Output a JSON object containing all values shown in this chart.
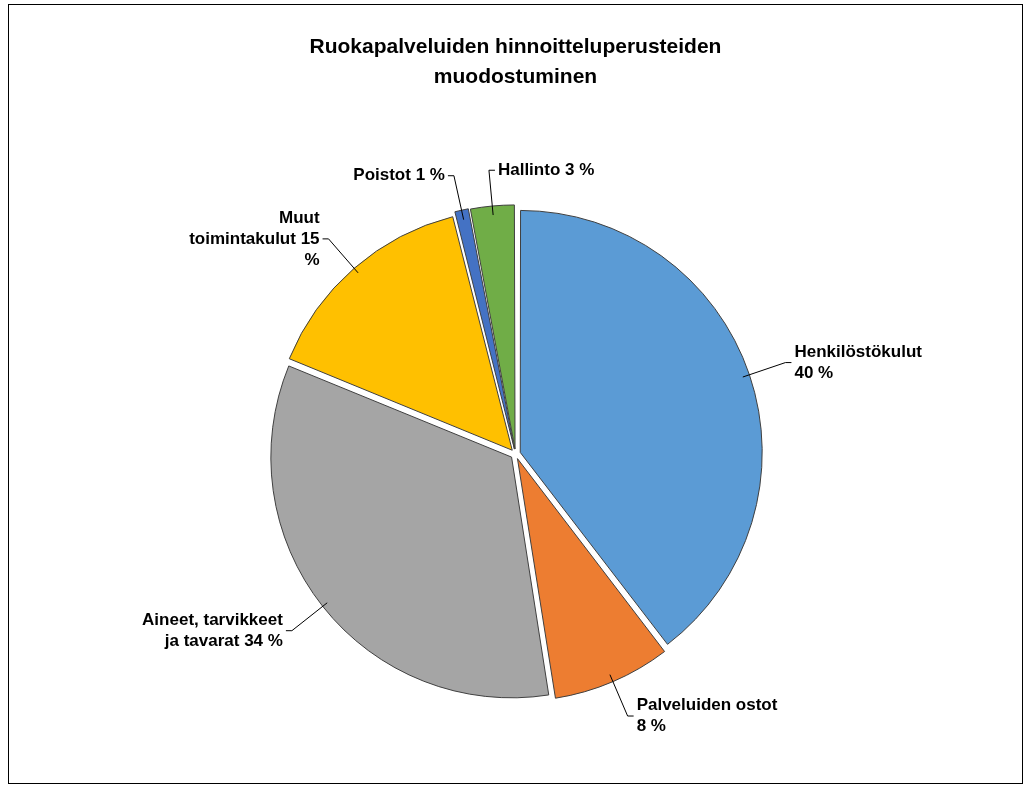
{
  "chart_data": {
    "type": "pie",
    "title": "Ruokapalveluiden hinnoitteluperusteiden muodostuminen",
    "categories": [
      "Henkilöstökulut",
      "Palveluiden ostot",
      "Aineet, tarvikkeet ja tavarat",
      "Muut toimintakulut",
      "Poistot",
      "Hallinto"
    ],
    "values": [
      40,
      8,
      34,
      15,
      1,
      3
    ],
    "value_labels": [
      "40 %",
      "8 %",
      "34 %",
      "15 %",
      "1 %",
      "3 %"
    ],
    "colors": [
      "#5b9bd5",
      "#ed7d31",
      "#a5a5a5",
      "#ffc000",
      "#4472c4",
      "#70ad47"
    ],
    "legend": false
  }
}
